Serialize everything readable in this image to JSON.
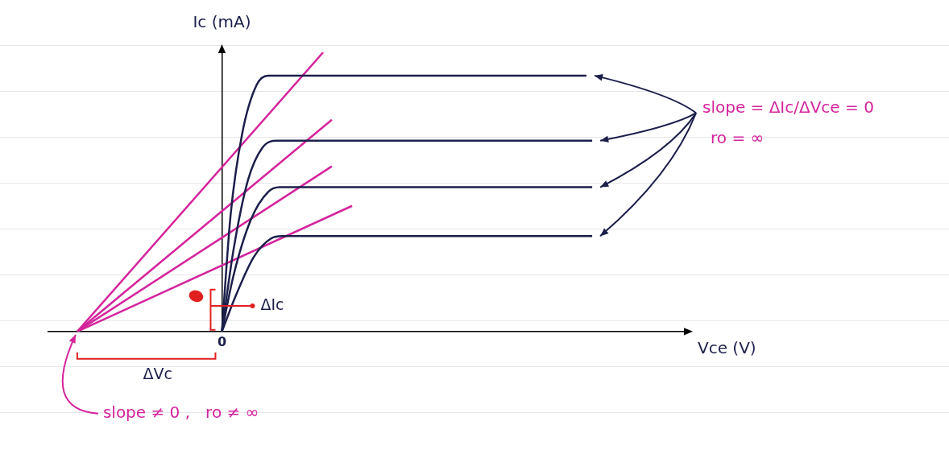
{
  "chart_data": {
    "type": "line",
    "x_label": "Vce (V)",
    "y_label": "Ic (mA)",
    "xlim": [
      -6,
      16
    ],
    "ylim": [
      0,
      12
    ],
    "xticks": [
      0
    ],
    "yticks": [],
    "tick_labels": "x",
    "grid": false,
    "series": [
      {
        "color": "#1c1f4a",
        "line_style": "smooth",
        "x": [
          0,
          0.3,
          0.7,
          1.2,
          1.6,
          12.6
        ],
        "values": [
          0,
          5,
          8.5,
          10.6,
          11,
          11
        ]
      },
      {
        "color": "#1c1f4a",
        "line_style": "smooth",
        "x": [
          0,
          0.4,
          0.9,
          1.4,
          1.9,
          12.8
        ],
        "values": [
          0,
          3.5,
          6.5,
          7.9,
          8.2,
          8.2
        ]
      },
      {
        "color": "#1c1f4a",
        "line_style": "smooth",
        "x": [
          0,
          0.4,
          1.0,
          1.6,
          2.0,
          12.8
        ],
        "values": [
          0,
          2.4,
          4.8,
          6.0,
          6.2,
          6.2
        ]
      },
      {
        "color": "#1c1f4a",
        "line_style": "smooth",
        "x": [
          0,
          0.5,
          1.1,
          1.7,
          2.1,
          12.8
        ],
        "values": [
          0,
          1.6,
          3.2,
          4.0,
          4.1,
          4.1
        ]
      },
      {
        "color": "#d4249c",
        "line_style": "solid",
        "x": [
          -5,
          3.5
        ],
        "values": [
          0,
          12
        ]
      },
      {
        "color": "#d4249c",
        "line_style": "solid",
        "x": [
          -5,
          3.8
        ],
        "values": [
          0,
          9.1
        ]
      },
      {
        "color": "#d4249c",
        "line_style": "solid",
        "x": [
          -5,
          3.8
        ],
        "values": [
          0,
          7.1
        ]
      },
      {
        "color": "#d4249c",
        "line_style": "solid",
        "x": [
          -5,
          4.5
        ],
        "values": [
          0,
          5.4
        ]
      }
    ],
    "annotations": {
      "slope_flat": "slope = ΔIc/ΔVce = 0",
      "ro_flat": "ro = ∞",
      "delta_ic": "ΔIc",
      "delta_vc": "ΔVc",
      "slope_early": "slope ≠ 0 ,   ro ≠ ∞"
    }
  }
}
